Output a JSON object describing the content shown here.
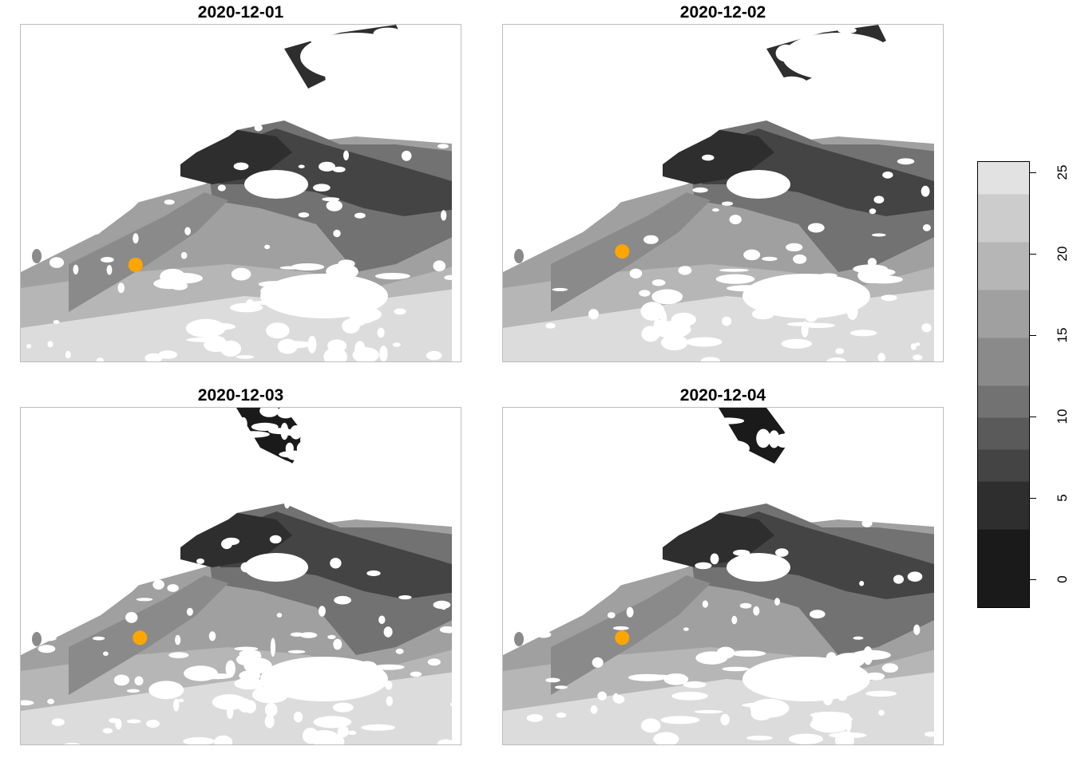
{
  "panels": [
    {
      "title": "2020-12-01",
      "point": {
        "lon_frac": 0.26,
        "lat_frac": 0.71
      }
    },
    {
      "title": "2020-12-02",
      "point": {
        "lon_frac": 0.27,
        "lat_frac": 0.67
      }
    },
    {
      "title": "2020-12-03",
      "point": {
        "lon_frac": 0.27,
        "lat_frac": 0.68
      }
    },
    {
      "title": "2020-12-04",
      "point": {
        "lon_frac": 0.27,
        "lat_frac": 0.68
      }
    }
  ],
  "legend": {
    "ticks": [
      "0",
      "5",
      "10",
      "15",
      "20",
      "25"
    ],
    "min": -2,
    "max": 26,
    "colors": [
      "#1a1a1a",
      "#2e2e2e",
      "#444444",
      "#5a5a5a",
      "#727272",
      "#8a8a8a",
      "#a0a0a0",
      "#b6b6b6",
      "#cccccc",
      "#e2e2e2"
    ]
  },
  "colors": {
    "point": "#ffa500",
    "frame": "#bdbdbd"
  }
}
